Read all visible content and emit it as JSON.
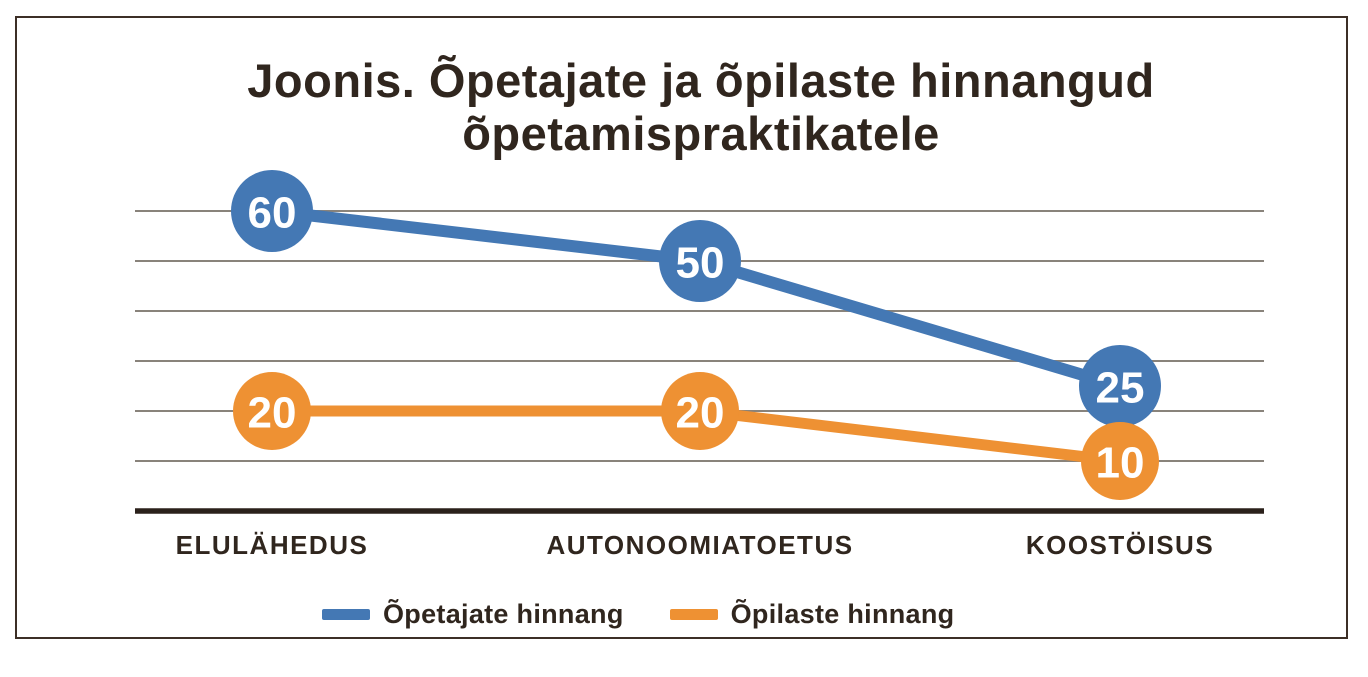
{
  "figure": {
    "title": "Joonis. Õpetajate ja õpilaste hinnangud õpetamispraktikatele",
    "title_lines": [
      "Joonis. Õpetajate ja õpilaste hinnangud",
      "õpetamispraktikatele"
    ]
  },
  "colors": {
    "teachers_blue": "#4478b4",
    "students_orange": "#ee9133",
    "text_dark": "#30261e",
    "gridline": "#89837b",
    "axis_baseline": "#2b211b",
    "frame_border": "#3c2f26",
    "marker_label": "#ffffff"
  },
  "chart_data": {
    "type": "line",
    "categories": [
      "ELULÄHEDUS",
      "AUTONOOMIATOETUS",
      "KOOSTÖISUS"
    ],
    "series": [
      {
        "name": "Õpetajate hinnang",
        "values": [
          60,
          50,
          25
        ],
        "color": "#4478b4"
      },
      {
        "name": "Õpilaste hinnang",
        "values": [
          20,
          20,
          10
        ],
        "color": "#ee9133"
      }
    ],
    "title": "Joonis. Õpetajate ja õpilaste hinnangud õpetamispraktikatele",
    "xlabel": "",
    "ylabel": "",
    "ylim": [
      0,
      65
    ],
    "y_gridlines": [
      10,
      20,
      30,
      40,
      50,
      60
    ],
    "grid": true,
    "data_labels": true,
    "legend_position": "bottom"
  }
}
